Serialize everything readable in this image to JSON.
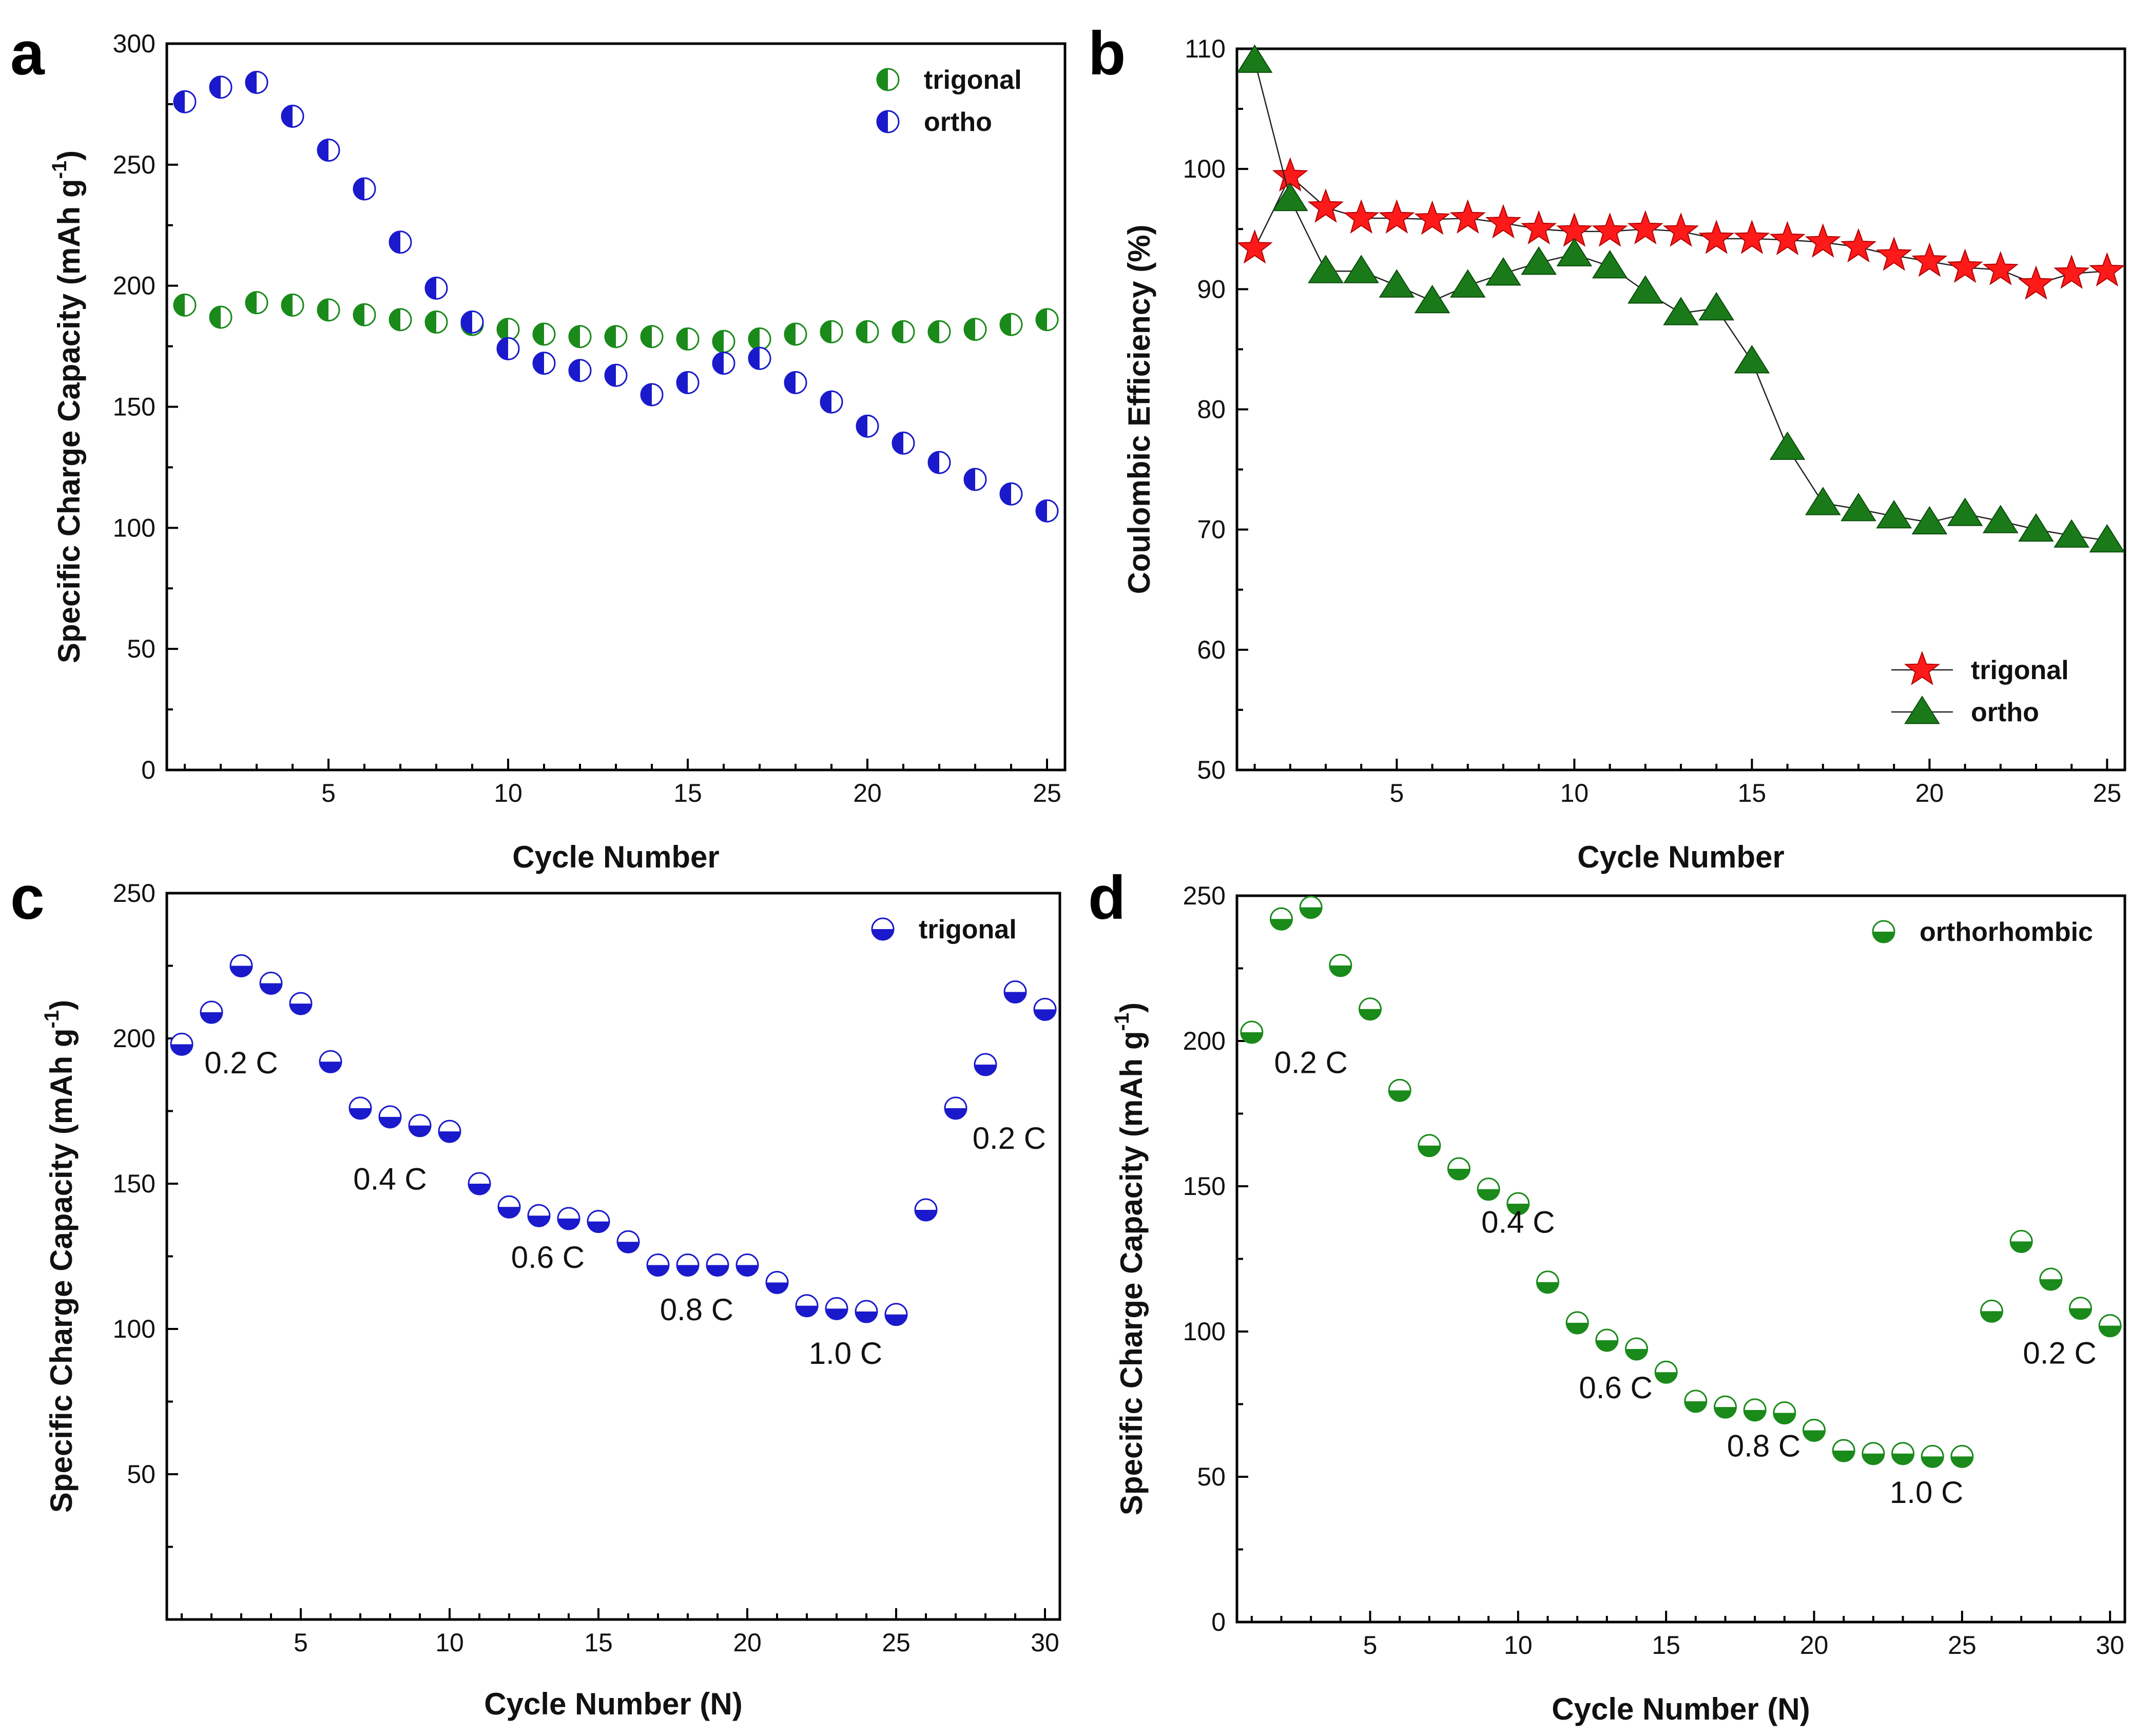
{
  "chart_data": [
    {
      "panel": "a",
      "type": "scatter",
      "xlabel": "Cycle Number",
      "ylabel": "Specific Charge Capacity (mAh g",
      "ylabel_superscript": "-1",
      "ylabel_close": ")",
      "xlim": [
        0.5,
        25.5
      ],
      "ylim": [
        0,
        300
      ],
      "xticks": [
        5,
        10,
        15,
        20,
        25
      ],
      "yticks": [
        0,
        50,
        100,
        150,
        200,
        250,
        300
      ],
      "legend_position": "top-right",
      "series": [
        {
          "name": "trigonal",
          "color": "#1a8a1a",
          "marker": "half-circle-left",
          "x": [
            1,
            2,
            3,
            4,
            5,
            6,
            7,
            8,
            9,
            10,
            11,
            12,
            13,
            14,
            15,
            16,
            17,
            18,
            19,
            20,
            21,
            22,
            23,
            24,
            25
          ],
          "values": [
            192,
            187,
            193,
            192,
            190,
            188,
            186,
            185,
            184,
            182,
            180,
            179,
            179,
            179,
            178,
            177,
            178,
            180,
            181,
            181,
            181,
            181,
            182,
            184,
            186
          ]
        },
        {
          "name": "ortho",
          "color": "#1a1acc",
          "marker": "half-circle-left",
          "x": [
            1,
            2,
            3,
            4,
            5,
            6,
            7,
            8,
            9,
            10,
            11,
            12,
            13,
            14,
            15,
            16,
            17,
            18,
            19,
            20,
            21,
            22,
            23,
            24,
            25
          ],
          "values": [
            276,
            282,
            284,
            270,
            256,
            240,
            218,
            199,
            185,
            174,
            168,
            165,
            163,
            155,
            160,
            168,
            170,
            160,
            152,
            142,
            135,
            127,
            120,
            114,
            107
          ]
        }
      ]
    },
    {
      "panel": "b",
      "type": "line",
      "xlabel": "Cycle Number",
      "ylabel": "Coulombic Efficiency (%)",
      "xlim": [
        0.5,
        25.5
      ],
      "ylim": [
        50,
        110
      ],
      "xticks": [
        5,
        10,
        15,
        20,
        25
      ],
      "yticks": [
        50,
        60,
        70,
        80,
        90,
        100,
        110
      ],
      "legend_position": "bottom-right",
      "series": [
        {
          "name": "trigonal",
          "color": "#ff1a1a",
          "marker": "star",
          "x": [
            1,
            2,
            3,
            4,
            5,
            6,
            7,
            8,
            9,
            10,
            11,
            12,
            13,
            14,
            15,
            16,
            17,
            18,
            19,
            20,
            21,
            22,
            23,
            24,
            25
          ],
          "values": [
            93.4,
            99.4,
            96.8,
            95.9,
            95.9,
            95.8,
            95.9,
            95.5,
            95.0,
            94.8,
            94.8,
            95.0,
            94.8,
            94.2,
            94.2,
            94.1,
            93.9,
            93.5,
            92.8,
            92.3,
            91.8,
            91.6,
            90.4,
            91.3,
            91.5
          ]
        },
        {
          "name": "ortho",
          "color": "#1a7a1a",
          "marker": "triangle",
          "x": [
            1,
            2,
            3,
            4,
            5,
            6,
            7,
            8,
            9,
            10,
            11,
            12,
            13,
            14,
            15,
            16,
            17,
            18,
            19,
            20,
            21,
            22,
            23,
            24,
            25
          ],
          "values": [
            109,
            97.5,
            91.5,
            91.5,
            90.3,
            89,
            90.3,
            91.3,
            92.2,
            92.9,
            91.9,
            89.8,
            88,
            88.4,
            84,
            76.8,
            72.2,
            71.7,
            71.1,
            70.6,
            71.3,
            70.7,
            70,
            69.5,
            69.1
          ]
        }
      ]
    },
    {
      "panel": "c",
      "type": "scatter",
      "xlabel": "Cycle Number (N)",
      "ylabel": "Specific Charge Capacity (mAh g",
      "ylabel_superscript": "-1",
      "ylabel_close": ")",
      "xlim": [
        0.5,
        30.5
      ],
      "ylim": [
        0,
        250
      ],
      "xticks": [
        5,
        10,
        15,
        20,
        25,
        30
      ],
      "yticks": [
        50,
        100,
        150,
        200,
        250
      ],
      "legend_position": "top-right",
      "annotations": [
        {
          "text": "0.2 C",
          "x": 3,
          "y": 188
        },
        {
          "text": "0.4 C",
          "x": 8,
          "y": 148
        },
        {
          "text": "0.6 C",
          "x": 13.3,
          "y": 121
        },
        {
          "text": "0.8 C",
          "x": 18.3,
          "y": 103
        },
        {
          "text": "1.0 C",
          "x": 23.3,
          "y": 88
        },
        {
          "text": "0.2 C",
          "x": 28.8,
          "y": 162
        }
      ],
      "series": [
        {
          "name": "trigonal",
          "color": "#1a1acc",
          "marker": "half-circle-bottom",
          "x": [
            1,
            2,
            3,
            4,
            5,
            6,
            7,
            8,
            9,
            10,
            11,
            12,
            13,
            14,
            15,
            16,
            17,
            18,
            19,
            20,
            21,
            22,
            23,
            24,
            25,
            26,
            27,
            28,
            29,
            30
          ],
          "values": [
            198,
            209,
            225,
            219,
            212,
            192,
            176,
            173,
            170,
            168,
            150,
            142,
            139,
            138,
            137,
            130,
            122,
            122,
            122,
            122,
            116,
            108,
            107,
            106,
            105,
            141,
            176,
            191,
            216,
            210
          ]
        }
      ]
    },
    {
      "panel": "d",
      "type": "scatter",
      "xlabel": "Cycle Number (N)",
      "ylabel": "Specific Charge Capacity (mAh g",
      "ylabel_superscript": "-1",
      "ylabel_close": ")",
      "xlim": [
        0.5,
        30.5
      ],
      "ylim": [
        0,
        250
      ],
      "xticks": [
        5,
        10,
        15,
        20,
        25,
        30
      ],
      "yticks": [
        0,
        50,
        100,
        150,
        200,
        250
      ],
      "legend_position": "top-right",
      "annotations": [
        {
          "text": "0.2 C",
          "x": 3,
          "y": 189
        },
        {
          "text": "0.4 C",
          "x": 10,
          "y": 134
        },
        {
          "text": "0.6 C",
          "x": 13.3,
          "y": 77
        },
        {
          "text": "0.8 C",
          "x": 18.3,
          "y": 57
        },
        {
          "text": "1.0 C",
          "x": 23.8,
          "y": 41
        },
        {
          "text": "0.2 C",
          "x": 28.3,
          "y": 89
        }
      ],
      "series": [
        {
          "name": "orthorhombic",
          "color": "#1a8a1a",
          "marker": "half-circle-bottom",
          "x": [
            1,
            2,
            3,
            4,
            5,
            6,
            7,
            8,
            9,
            10,
            11,
            12,
            13,
            14,
            15,
            16,
            17,
            18,
            19,
            20,
            21,
            22,
            23,
            24,
            25,
            26,
            27,
            28,
            29,
            30
          ],
          "values": [
            203,
            242,
            246,
            226,
            211,
            183,
            164,
            156,
            149,
            144,
            117,
            103,
            97,
            94,
            86,
            76,
            74,
            73,
            72,
            66,
            59,
            58,
            58,
            57,
            57,
            107,
            131,
            118,
            108,
            102
          ]
        }
      ]
    }
  ]
}
